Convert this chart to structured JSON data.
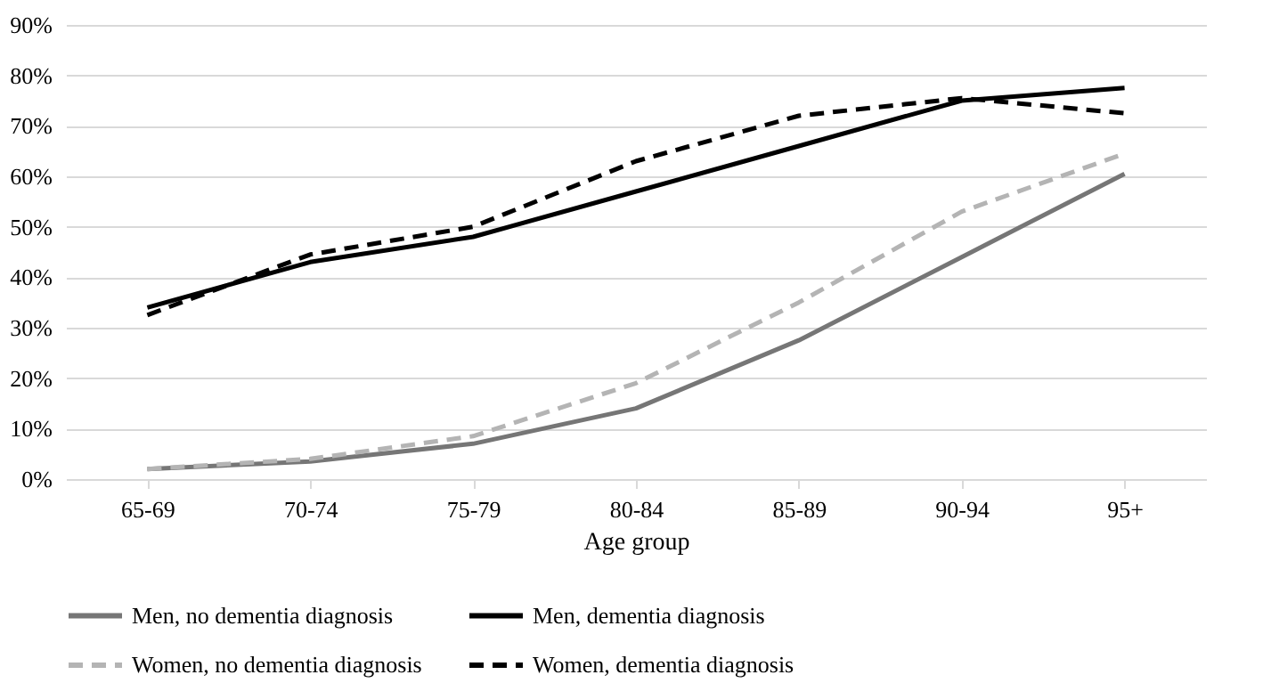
{
  "chart_data": {
    "type": "line",
    "xlabel": "Age group",
    "categories": [
      "65-69",
      "70-74",
      "75-79",
      "80-84",
      "85-89",
      "90-94",
      "95+"
    ],
    "ylim": [
      0,
      90
    ],
    "yticks": [
      {
        "value": 0,
        "label": "0%"
      },
      {
        "value": 10,
        "label": "10%"
      },
      {
        "value": 20,
        "label": "20%"
      },
      {
        "value": 30,
        "label": "30%"
      },
      {
        "value": 40,
        "label": "40%"
      },
      {
        "value": 50,
        "label": "50%"
      },
      {
        "value": 60,
        "label": "60%"
      },
      {
        "value": 70,
        "label": "70%"
      },
      {
        "value": 80,
        "label": "80%"
      },
      {
        "value": 90,
        "label": "90%"
      }
    ],
    "grid": "y",
    "legend": "bottom",
    "marker": "none",
    "series": [
      {
        "name": "Men, no dementia diagnosis",
        "color": "#767676",
        "line_style": "solid",
        "values": [
          2,
          3.5,
          7,
          14,
          27.5,
          44,
          60.5
        ]
      },
      {
        "name": "Men, dementia diagnosis",
        "color": "#000000",
        "line_style": "solid",
        "values": [
          34,
          43,
          48,
          57,
          66,
          75,
          77.5
        ]
      },
      {
        "name": "Women, no dementia diagnosis",
        "color": "#b4b4b4",
        "line_style": "dashed",
        "values": [
          2,
          4,
          8.5,
          19,
          35,
          53,
          64.5
        ]
      },
      {
        "name": "Women, dementia diagnosis",
        "color": "#000000",
        "line_style": "dashed",
        "values": [
          32.5,
          44.5,
          50,
          63,
          72,
          75.5,
          72.5
        ]
      }
    ]
  }
}
